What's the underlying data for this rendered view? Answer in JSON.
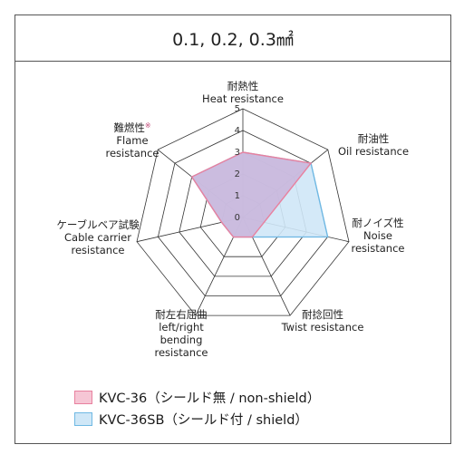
{
  "header": {
    "title": "0.1, 0.2, 0.3㎟"
  },
  "chart_data": {
    "type": "radar",
    "scale": {
      "min": 0,
      "max": 5,
      "ticks": [
        "0",
        "1",
        "2",
        "3",
        "4",
        "5"
      ]
    },
    "axes": [
      {
        "jp": "耐熱性",
        "en": [
          "Heat resistance"
        ]
      },
      {
        "jp": "耐油性",
        "en": [
          "Oil resistance"
        ]
      },
      {
        "jp": "耐ノイズ性",
        "en": [
          "Noise",
          "resistance"
        ]
      },
      {
        "jp": "耐捻回性",
        "en": [
          "Twist resistance"
        ]
      },
      {
        "jp": "耐左右屈曲",
        "en": [
          "left/right",
          "bending",
          "resistance"
        ]
      },
      {
        "jp": "ケーブルベア試験",
        "en": [
          "Cable carrier",
          "resistance"
        ]
      },
      {
        "jp": "難燃性",
        "jp_mark": "※",
        "en": [
          "Flame",
          "resistance"
        ]
      }
    ],
    "series": [
      {
        "name": "KVC-36（シールド無 / non-shield）",
        "values": [
          3,
          4,
          1,
          1,
          1,
          1,
          3
        ],
        "fill": "#f6c6d5",
        "stroke": "#e8819f"
      },
      {
        "name": "KVC-36SB（シールド付 / shield）",
        "values": [
          3,
          4,
          4,
          1,
          1,
          1,
          3
        ],
        "fill": "#cfe7f7",
        "stroke": "#6fb8e3"
      }
    ],
    "overlap_color": "#c9b4da"
  }
}
